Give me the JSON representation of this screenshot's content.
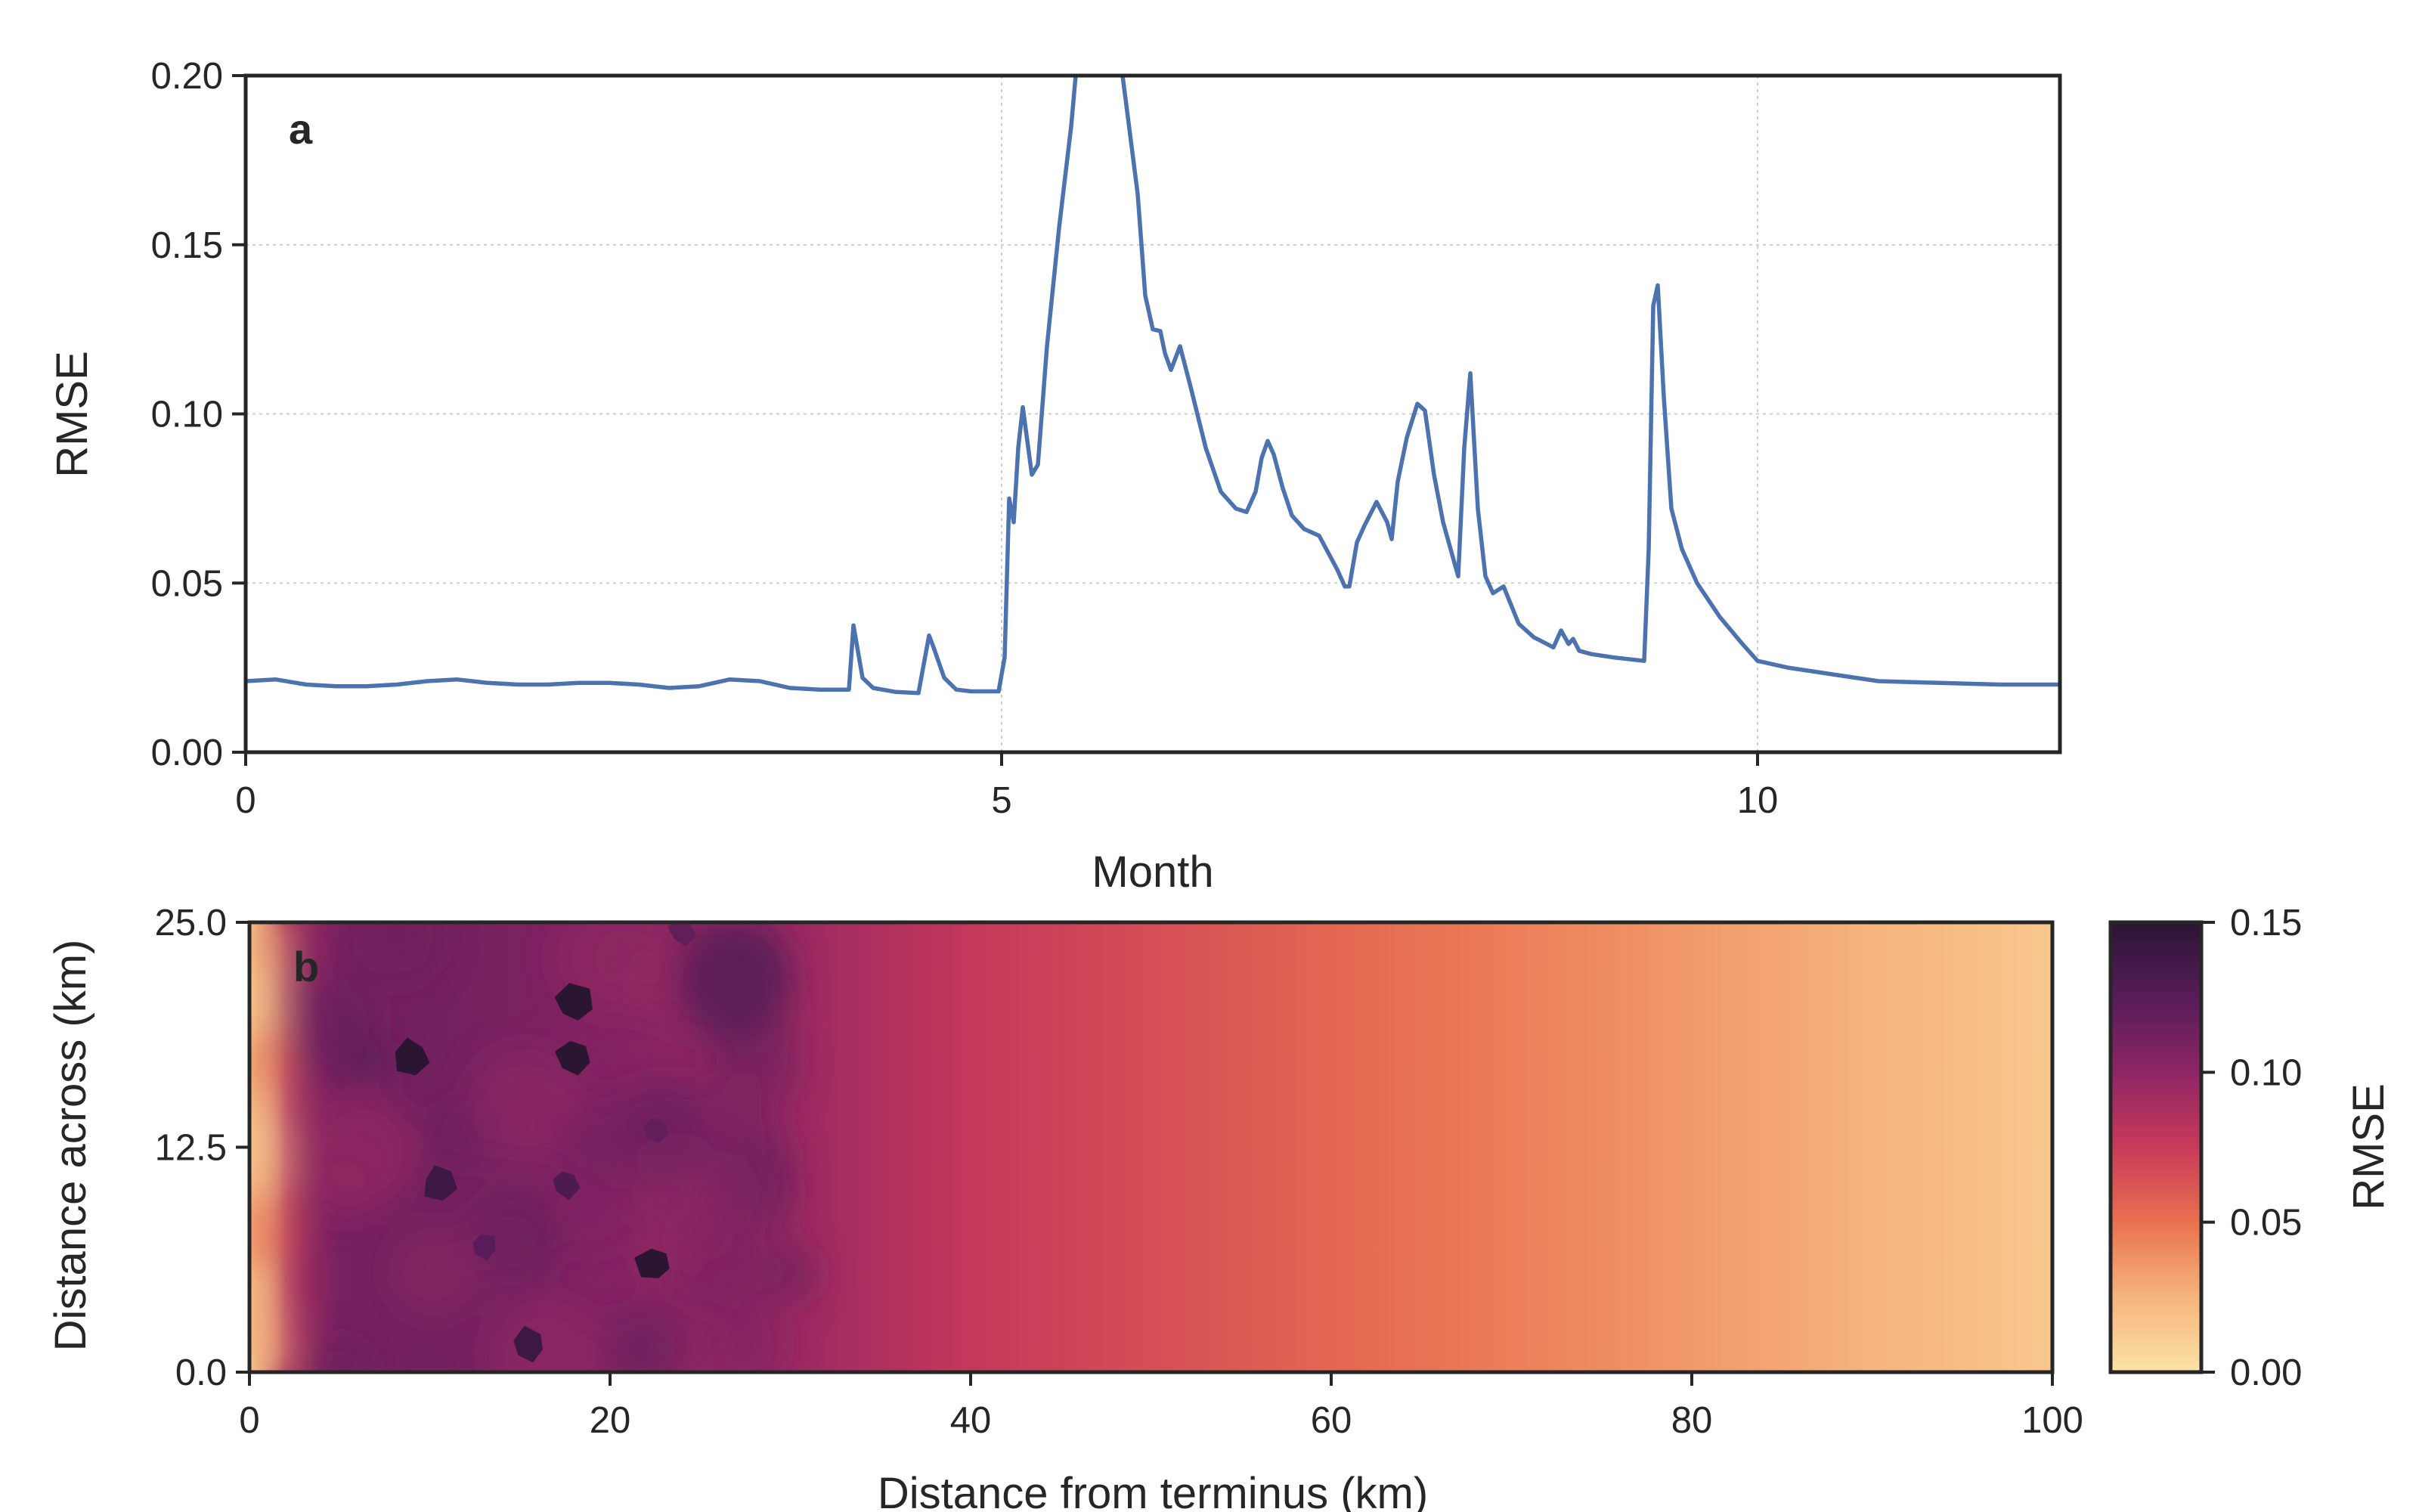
{
  "chart_data": [
    {
      "panel": "a",
      "type": "line",
      "xlabel": "Month",
      "ylabel": "RMSE",
      "xlim": [
        0,
        12
      ],
      "ylim": [
        0,
        0.2
      ],
      "xticks": [
        "0",
        "5",
        "10"
      ],
      "yticks": [
        "0.00",
        "0.05",
        "0.10",
        "0.15",
        "0.20"
      ],
      "grid": true,
      "line_color": "#4c72b0",
      "series": [
        {
          "x": [
            0,
            0.2,
            0.4,
            0.6,
            0.8,
            1.0,
            1.2,
            1.4,
            1.6,
            1.8,
            2.0,
            2.2,
            2.4,
            2.6,
            2.8,
            3.0,
            3.2,
            3.4,
            3.6,
            3.8,
            3.99,
            4.02,
            4.08,
            4.15,
            4.3,
            4.45,
            4.52,
            4.55,
            4.62,
            4.7,
            4.8,
            4.98,
            5.02,
            5.05,
            5.08,
            5.11,
            5.14,
            5.17,
            5.2,
            5.24,
            5.3,
            5.38,
            5.46,
            5.5,
            5.55,
            5.6,
            5.7,
            5.8,
            5.9,
            5.95,
            6.0,
            6.05,
            6.08,
            6.12,
            6.18,
            6.25,
            6.35,
            6.45,
            6.55,
            6.62,
            6.68,
            6.72,
            6.76,
            6.8,
            6.86,
            6.92,
            7.0,
            7.1,
            7.22,
            7.27,
            7.3,
            7.35,
            7.4,
            7.48,
            7.55,
            7.58,
            7.62,
            7.68,
            7.75,
            7.8,
            7.86,
            7.92,
            7.97,
            8.02,
            8.06,
            8.1,
            8.15,
            8.2,
            8.25,
            8.32,
            8.42,
            8.52,
            8.65,
            8.7,
            8.75,
            8.78,
            8.82,
            8.9,
            9.05,
            9.25,
            9.28,
            9.31,
            9.34,
            9.38,
            9.43,
            9.5,
            9.6,
            9.75,
            9.9,
            10.0,
            10.2,
            10.5,
            10.8,
            11.2,
            11.6,
            12.0
          ],
          "y": [
            0.021,
            0.0215,
            0.02,
            0.0195,
            0.0195,
            0.02,
            0.021,
            0.0215,
            0.0205,
            0.02,
            0.02,
            0.0205,
            0.0205,
            0.02,
            0.019,
            0.0195,
            0.0215,
            0.021,
            0.019,
            0.0185,
            0.0185,
            0.0375,
            0.022,
            0.019,
            0.0178,
            0.0175,
            0.0345,
            0.031,
            0.022,
            0.0185,
            0.018,
            0.018,
            0.028,
            0.075,
            0.068,
            0.09,
            0.102,
            0.092,
            0.082,
            0.085,
            0.12,
            0.155,
            0.185,
            0.205,
            0.235,
            0.235,
            0.215,
            0.2,
            0.165,
            0.135,
            0.125,
            0.1245,
            0.118,
            0.113,
            0.12,
            0.108,
            0.09,
            0.077,
            0.072,
            0.071,
            0.077,
            0.087,
            0.092,
            0.088,
            0.078,
            0.07,
            0.066,
            0.064,
            0.054,
            0.049,
            0.049,
            0.062,
            0.067,
            0.074,
            0.068,
            0.063,
            0.08,
            0.093,
            0.103,
            0.101,
            0.082,
            0.068,
            0.06,
            0.052,
            0.09,
            0.112,
            0.072,
            0.052,
            0.047,
            0.049,
            0.038,
            0.034,
            0.031,
            0.036,
            0.032,
            0.0335,
            0.03,
            0.029,
            0.028,
            0.027,
            0.06,
            0.132,
            0.138,
            0.105,
            0.072,
            0.06,
            0.05,
            0.04,
            0.032,
            0.027,
            0.025,
            0.023,
            0.021,
            0.0205,
            0.02,
            0.02
          ]
        }
      ]
    },
    {
      "panel": "b",
      "type": "heatmap",
      "xlabel": "Distance from terminus (km)",
      "ylabel": "Distance across (km)",
      "xlim": [
        0,
        100
      ],
      "ylim": [
        0,
        25
      ],
      "xticks": [
        "0",
        "20",
        "40",
        "60",
        "80",
        "100"
      ],
      "yticks": [
        "0.0",
        "12.5",
        "25.0"
      ],
      "colorbar": {
        "label": "RMSE",
        "range": [
          0,
          0.15
        ],
        "ticks": [
          "0.00",
          "0.05",
          "0.10",
          "0.15"
        ],
        "colormap": [
          "#fbe3a6",
          "#f6b47c",
          "#e9714f",
          "#c93a5a",
          "#8e2564",
          "#571c59",
          "#2a1533"
        ]
      },
      "field_profile": {
        "x": [
          0,
          2,
          5,
          10,
          20,
          30,
          40,
          50,
          60,
          70,
          80,
          90,
          100
        ],
        "rmse": [
          0.01,
          0.09,
          0.11,
          0.112,
          0.105,
          0.095,
          0.077,
          0.066,
          0.055,
          0.045,
          0.035,
          0.025,
          0.015
        ]
      },
      "hotspots": [
        {
          "x": 9,
          "y": 17.5,
          "rmse": 0.15
        },
        {
          "x": 18,
          "y": 17.5,
          "rmse": 0.15
        },
        {
          "x": 18,
          "y": 20.5,
          "rmse": 0.15
        },
        {
          "x": 10.5,
          "y": 10.5,
          "rmse": 0.14
        },
        {
          "x": 17.5,
          "y": 10.5,
          "rmse": 0.13
        },
        {
          "x": 22.5,
          "y": 6,
          "rmse": 0.15
        },
        {
          "x": 15.5,
          "y": 1.5,
          "rmse": 0.14
        },
        {
          "x": 22.5,
          "y": 13.5,
          "rmse": 0.12
        },
        {
          "x": 24,
          "y": 24.5,
          "rmse": 0.12
        },
        {
          "x": 13,
          "y": 7,
          "rmse": 0.125
        }
      ]
    }
  ]
}
